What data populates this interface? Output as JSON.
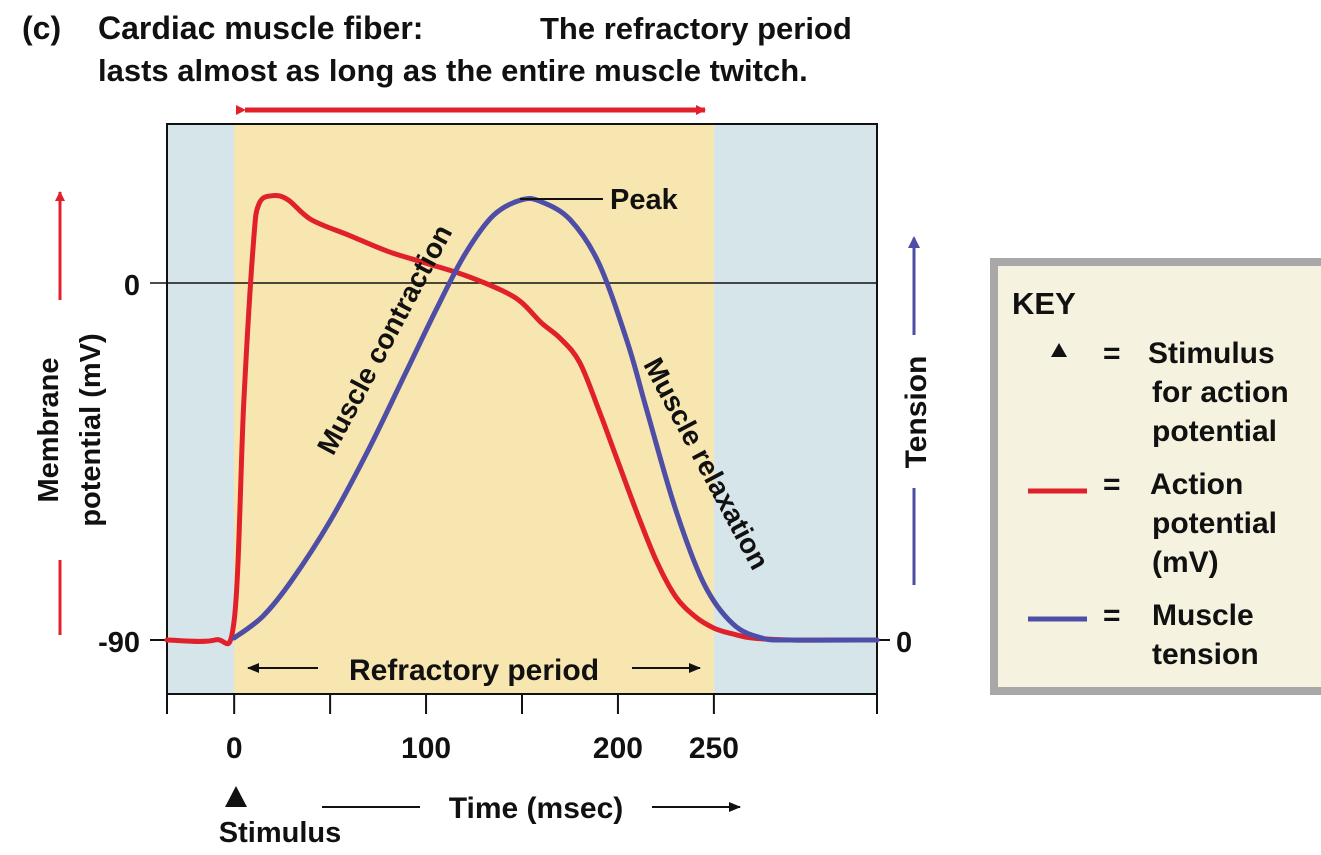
{
  "header": {
    "part_label": "(c)",
    "title_bold": "Cardiac muscle fiber:",
    "title_rest": "The refractory period",
    "title_line2": "lasts almost as long as the entire muscle twitch."
  },
  "colors": {
    "action_potential": "#e0202a",
    "tension": "#4f4ea6",
    "refractory_fill": "#f8e6b0",
    "plot_bg": "#d5e5ea",
    "key_bg": "#f6f2e0"
  },
  "key": {
    "title": "KEY",
    "items": [
      {
        "symbol": "triangle",
        "line1": "Stimulus",
        "line2": "for action",
        "line3": "potential"
      },
      {
        "symbol": "red-line",
        "line1": "Action",
        "line2": "potential",
        "line3": "(mV)"
      },
      {
        "symbol": "blue-line",
        "line1": "Muscle",
        "line2": "tension",
        "line3": ""
      }
    ],
    "equals": "="
  },
  "chart_data": {
    "type": "line",
    "xlabel": "Time (msec)",
    "x_ticks": [
      0,
      100,
      200,
      250
    ],
    "x_tick_labels": [
      "0",
      "100",
      "200",
      "250"
    ],
    "xlim": [
      -35,
      335
    ],
    "y_left_label_line1": "Membrane",
    "y_left_label_line2": "potential (mV)",
    "y_left_ticks": [
      "0",
      "-90"
    ],
    "ylim_left": [
      -103,
      40
    ],
    "y_right_label": "Tension",
    "y_right_tick": "0",
    "refractory_period": {
      "label": "Refractory period",
      "start": 0,
      "end": 250
    },
    "stimulus": {
      "x": 0,
      "label": "Stimulus"
    },
    "peak_label": "Peak",
    "contraction_label": "Muscle contraction",
    "relaxation_label": "Muscle relaxation",
    "series": [
      {
        "name": "Action potential",
        "x": [
          -35,
          -10,
          0,
          5,
          10,
          13,
          20,
          28,
          40,
          60,
          80,
          100,
          120,
          140,
          150,
          160,
          170,
          180,
          190,
          200,
          210,
          220,
          230,
          240,
          250,
          260,
          270,
          290,
          310,
          335
        ],
        "y": [
          -90,
          -90,
          -85,
          -30,
          10,
          20,
          22,
          21,
          16,
          12,
          8,
          5,
          2,
          -2,
          -5,
          -10,
          -14,
          -20,
          -32,
          -45,
          -58,
          -70,
          -79,
          -84,
          -87,
          -88.5,
          -89.5,
          -90,
          -90,
          -90
        ]
      },
      {
        "name": "Muscle tension",
        "x": [
          0,
          15,
          30,
          50,
          70,
          90,
          105,
          120,
          135,
          150,
          160,
          175,
          190,
          205,
          215,
          230,
          245,
          260,
          275,
          290,
          335
        ],
        "y": [
          -89.5,
          -84,
          -75,
          -60,
          -42,
          -22,
          -7,
          7,
          17,
          21,
          20.5,
          16,
          5,
          -15,
          -32,
          -57,
          -76,
          -86,
          -89.5,
          -90,
          -90
        ]
      }
    ]
  }
}
